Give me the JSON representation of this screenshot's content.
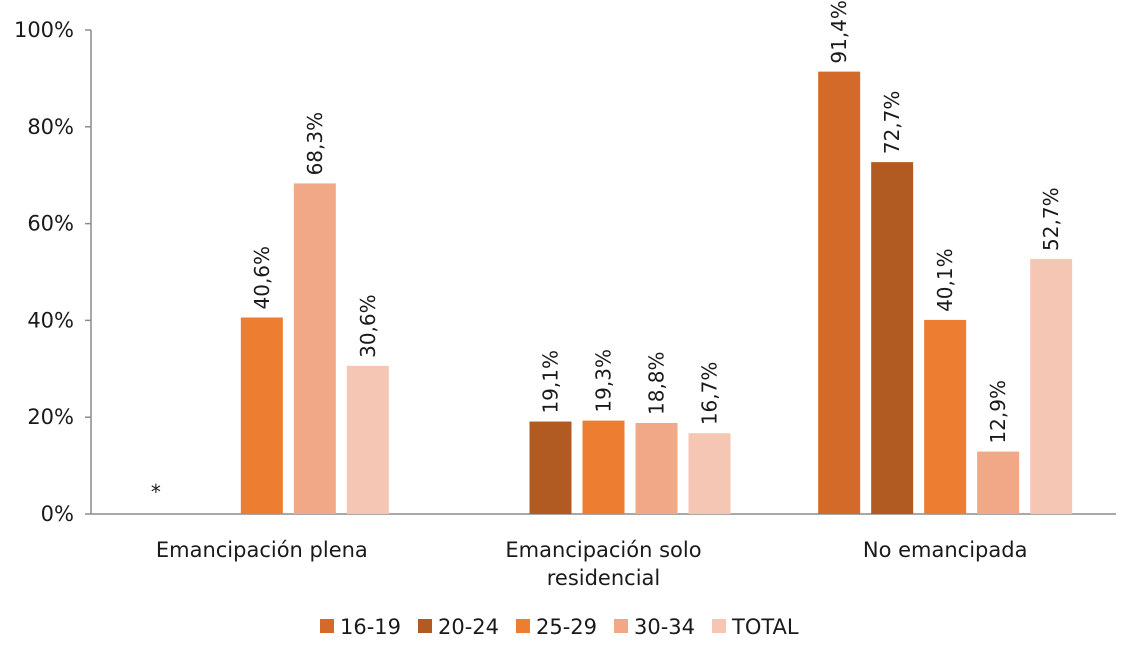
{
  "chart_data": {
    "type": "bar",
    "categories": [
      [
        "Emancipación plena"
      ],
      [
        "Emancipación solo",
        "residencial"
      ],
      [
        "No emancipada"
      ]
    ],
    "series": [
      {
        "name": "16-19",
        "color": "#d46a2a",
        "values": [
          null,
          null,
          91.4
        ],
        "labels": [
          "*",
          null,
          "91,4%"
        ]
      },
      {
        "name": "20-24",
        "color": "#b15a22",
        "values": [
          null,
          19.1,
          72.7
        ],
        "labels": [
          null,
          "19,1%",
          "72,7%"
        ]
      },
      {
        "name": "25-29",
        "color": "#ed7d31",
        "values": [
          40.6,
          19.3,
          40.1
        ],
        "labels": [
          "40,6%",
          "19,3%",
          "40,1%"
        ]
      },
      {
        "name": "30-34",
        "color": "#f0a886",
        "values": [
          68.3,
          18.8,
          12.9
        ],
        "labels": [
          "68,3%",
          "18,8%",
          "12,9%"
        ]
      },
      {
        "name": "TOTAL",
        "color": "#f6c6b5",
        "values": [
          30.6,
          16.7,
          52.7
        ],
        "labels": [
          "30,6%",
          "16,7%",
          "52,7%"
        ]
      }
    ],
    "ylim": [
      0,
      100
    ],
    "yticks": [
      {
        "value": 0,
        "label": "0%"
      },
      {
        "value": 20,
        "label": "20%"
      },
      {
        "value": 40,
        "label": "40%"
      },
      {
        "value": 60,
        "label": "60%"
      },
      {
        "value": 80,
        "label": "80%"
      },
      {
        "value": 100,
        "label": "100%"
      }
    ],
    "legend_position": "bottom",
    "grid": false
  }
}
